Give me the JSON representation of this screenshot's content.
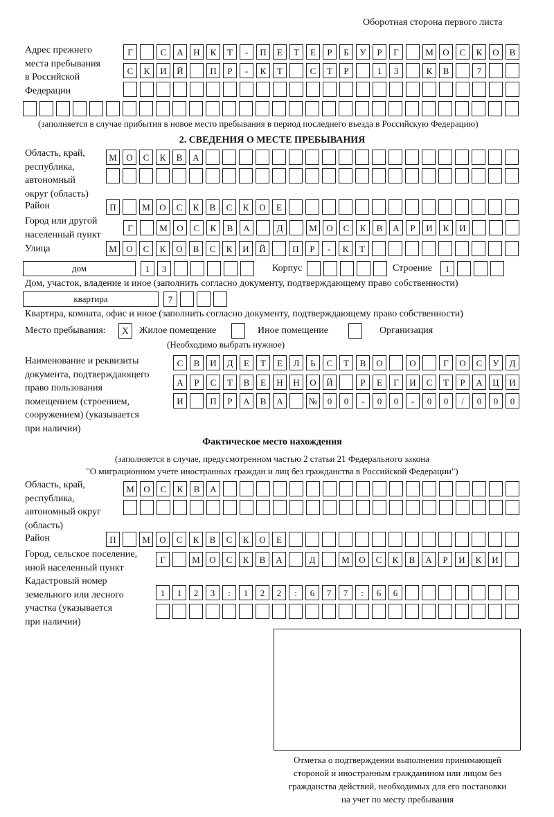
{
  "header": "Оборотная сторона первого листа",
  "prev_address": {
    "label": [
      "Адрес прежнего",
      "места пребывания",
      "в Российской",
      "Федерации"
    ],
    "rows": [
      "Г САНКТ-ПЕТЕРБУРГ МОСКОВ",
      "СКИЙ ПР-КТ СТР 13 КВ 7",
      "",
      ""
    ],
    "note": "(заполняется в случае прибытия в новое место пребывания в период последнего въезда в Российскую Федерацию)"
  },
  "section2": {
    "title": "2. СВЕДЕНИЯ О МЕСТЕ ПРЕБЫВАНИЯ",
    "region_label": [
      "Область, край,",
      "республика,",
      "автономный",
      "округ (область)"
    ],
    "region_rows": [
      "МОСКВА",
      ""
    ],
    "district_label": "Район",
    "district": "П МОСКВСКОЕ",
    "city_label": [
      "Город или другой",
      "населенный пункт"
    ],
    "city": "Г МОСКВА Д МОСКВАРИКИ",
    "street_label": "Улица",
    "street": "МОСКОВСКИЙ ПР-КТ",
    "house_type": "дом",
    "house": "13",
    "korpus_label": "Корпус",
    "korpus": "",
    "building_label": "Строение",
    "building": "1",
    "house_note": "Дом, участок, владение и иное (заполнить согласно документу, подтверждающему право собственности)",
    "flat_type": "квартира",
    "flat": "7",
    "flat_note": "Квартира, комната, офис и иное (заполнить согласно документу, подтверждающему право собственности)",
    "stay_label": "Место пребывания:",
    "stay_options": [
      {
        "label": "Жилое помещение",
        "mark": "X"
      },
      {
        "label": "Иное помещение",
        "mark": ""
      },
      {
        "label": "Организация",
        "mark": ""
      }
    ],
    "stay_note": "(Необходимо выбрать нужное)",
    "doc_label": [
      "Наименование и реквизиты",
      "документа, подтверждающего",
      "право пользования",
      "помещением (строением,",
      "сооружением) (указывается",
      "при наличии)"
    ],
    "doc_rows": [
      "СВИДЕТЕЛЬСТВО О ГОСУД",
      "АРСТВЕННОЙ РЕГИСТРАЦИ",
      "И ПРАВА №00-00-00/000"
    ]
  },
  "actual": {
    "title": "Фактическое место нахождения",
    "note": [
      "(заполняется в случае, предусмотренном частью 2 статьи 21 Федерального закона",
      "\"О миграционном учете иностранных граждан и лиц без гражданства в Российской Федерации\")"
    ],
    "region_label": [
      "Область, край,",
      "республика,",
      "автономный округ",
      "(область)"
    ],
    "region_rows": [
      "МОСКВА",
      ""
    ],
    "district_label": "Район",
    "district": "П МОСКВСКОЕ",
    "city_label": [
      "Город, сельское поселение,",
      "иной населенный пункт"
    ],
    "city": "Г МОСКВА Д МОСКВАРИКИ",
    "cadastre_label": [
      "Кадастровый номер",
      "земельного или лесного",
      "участка (указывается",
      "при наличии)"
    ],
    "cadastre_rows": [
      "1123:122:677:66",
      ""
    ]
  },
  "confirmation": {
    "caption": [
      "Отметка о подтверждении выполнения принимающей",
      "стороной и иностранным гражданином или лицом без",
      "гражданства действий, необходимых для его постановки",
      "на учет по месту пребывания"
    ]
  }
}
